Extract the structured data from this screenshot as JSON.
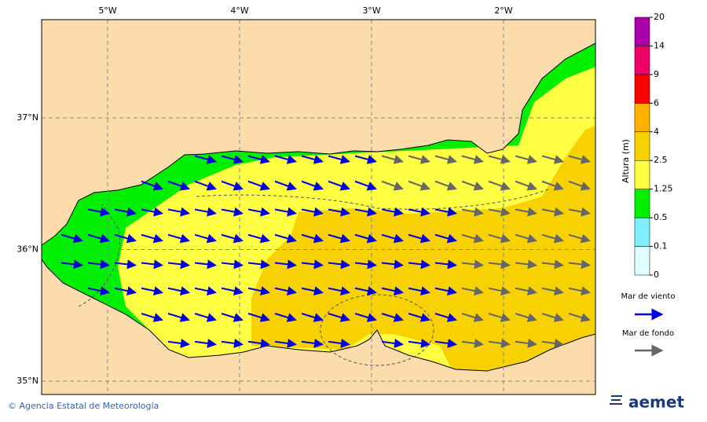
{
  "map": {
    "lon_labels": [
      "5°W",
      "4°W",
      "3°W",
      "2°W"
    ],
    "lat_labels": [
      "37°N",
      "36°N",
      "35°N"
    ]
  },
  "colorbar": {
    "title": "Altura (m)",
    "levels": [
      "0",
      "0.1",
      "0.5",
      "1.25",
      "2.5",
      "4",
      "6",
      "9",
      "14",
      "20"
    ],
    "colors": [
      "#e0ffff",
      "#80f0ff",
      "#00ee00",
      "#ffff44",
      "#f8d200",
      "#ffb000",
      "#ff0000",
      "#ee0066",
      "#aa00aa"
    ]
  },
  "legend": {
    "wind_sea": "Mar de viento",
    "swell": "Mar de fondo"
  },
  "footer": {
    "credit": "© Agencia Estatal de Meteorología",
    "logo": "aemet"
  }
}
